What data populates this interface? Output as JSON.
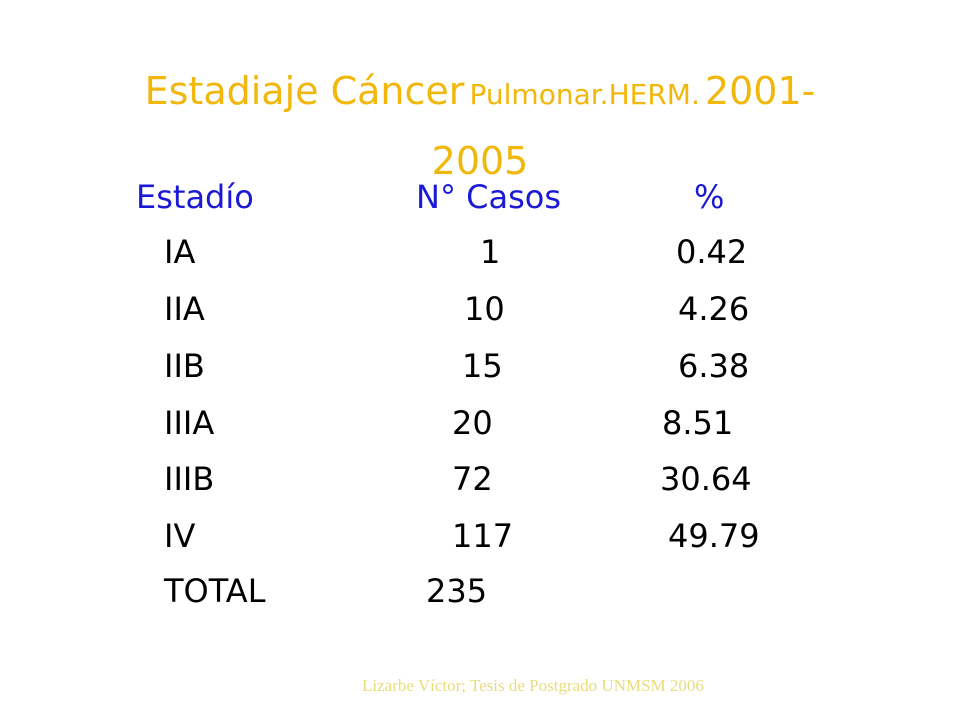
{
  "title": {
    "part1": "Estadiaje Cáncer",
    "part2": "Pulmonar.HERM",
    "part3": ".",
    "part4": "2001-",
    "part5": "2005"
  },
  "table": {
    "headers": {
      "stage": "Estadío",
      "cases": "N° Casos",
      "percent": "%"
    },
    "rows": [
      {
        "stage": "IA",
        "cases": "1",
        "percent": "0.42"
      },
      {
        "stage": "IIA",
        "cases": "10",
        "percent": "4.26"
      },
      {
        "stage": "IIB",
        "cases": "15",
        "percent": "6.38"
      },
      {
        "stage": "IIIA",
        "cases": "20",
        "percent": "8.51"
      },
      {
        "stage": "IIIB",
        "cases": "72",
        "percent": "30.64"
      },
      {
        "stage": "IV",
        "cases": "117",
        "percent": "49.79"
      },
      {
        "stage": "TOTAL",
        "cases": "235",
        "percent": ""
      }
    ]
  },
  "footer": {
    "citation": "Lizarbe Víctor;  Tesis de Postgrado  UNMSM 2006"
  },
  "colors": {
    "title": "#f2b70c",
    "header": "#1a1ad6",
    "body_text": "#000000",
    "footer": "#e9dc7e"
  }
}
